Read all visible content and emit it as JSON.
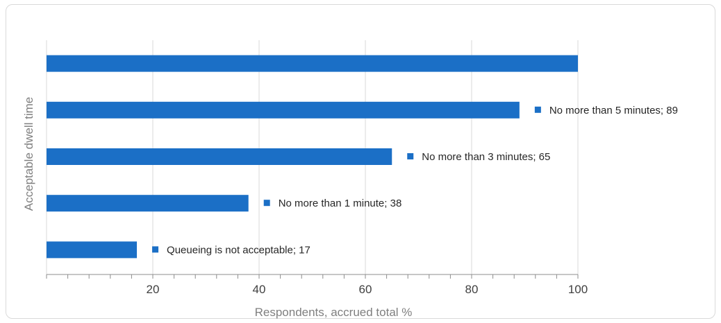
{
  "chart_data": {
    "type": "bar",
    "orientation": "horizontal",
    "categories": [
      "Queueing is not acceptable",
      "No more than 1 minute",
      "No more than 3 minutes",
      "No more than 5 minutes",
      ""
    ],
    "values": [
      17,
      38,
      65,
      89,
      100
    ],
    "data_labels": [
      "Queueing is not acceptable; 17",
      "No more than 1 minute; 38",
      "No more than 3 minutes; 65",
      "No more than 5 minutes; 89",
      ""
    ],
    "xlabel": "Respondents, accrued total %",
    "ylabel": "Acceptable dwell time",
    "xlim": [
      0,
      100
    ],
    "x_ticks": [
      20,
      40,
      60,
      80,
      100
    ],
    "x_minor_step": 4,
    "grid": true,
    "legend": "none",
    "colors": {
      "bar": "#1b6fc6",
      "grid": "#d9d9d9",
      "axis": "#8c8c8c",
      "frame": "#d9d9d9"
    }
  }
}
